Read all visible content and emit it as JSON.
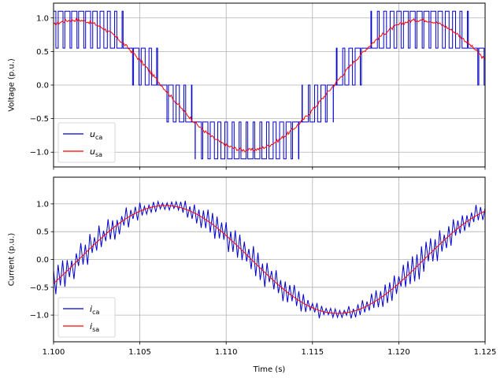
{
  "chart_data": [
    {
      "type": "line",
      "xlabel": "",
      "ylabel": "Voltage (p.u.)",
      "xlim": [
        1.1,
        1.125
      ],
      "ylim": [
        -1.22,
        1.22
      ],
      "xticks": [
        1.1,
        1.105,
        1.11,
        1.115,
        1.12,
        1.125
      ],
      "yticks": [
        -1.0,
        -0.5,
        0.0,
        0.5,
        1.0
      ],
      "ytick_labels": [
        "−1.0",
        "−0.5",
        "0.0",
        "0.5",
        "1.0"
      ],
      "show_xtick_labels": false,
      "grid": true,
      "legend_position": "lower-left",
      "series": [
        {
          "name": "u",
          "sub": "ca",
          "color": "#0000cc",
          "style": "pwm",
          "amplitude": 0.97,
          "period": 0.02,
          "phase": 1.18
        },
        {
          "name": "u",
          "sub": "sa",
          "color": "#ff0000",
          "style": "sine",
          "amplitude": 0.97,
          "period": 0.02,
          "phase": 1.18
        }
      ]
    },
    {
      "type": "line",
      "xlabel": "Time (s)",
      "ylabel": "Current (p.u.)",
      "xlim": [
        1.1,
        1.125
      ],
      "ylim": [
        -1.48,
        1.48
      ],
      "xticks": [
        1.1,
        1.105,
        1.11,
        1.115,
        1.12,
        1.125
      ],
      "xtick_labels": [
        "1.100",
        "1.105",
        "1.110",
        "1.115",
        "1.120",
        "1.125"
      ],
      "yticks": [
        -1.0,
        -0.5,
        0.0,
        0.5,
        1.0
      ],
      "ytick_labels": [
        "−1.0",
        "−0.5",
        "0.0",
        "0.5",
        "1.0"
      ],
      "show_xtick_labels": true,
      "grid": true,
      "legend_position": "lower-left",
      "series": [
        {
          "name": "i",
          "sub": "ca",
          "color": "#0000cc",
          "style": "ripple",
          "amplitude": 0.97,
          "period": 0.02,
          "phase": -0.46
        },
        {
          "name": "i",
          "sub": "sa",
          "color": "#ff0000",
          "style": "sine",
          "amplitude": 0.97,
          "period": 0.02,
          "phase": -0.46
        }
      ]
    }
  ]
}
